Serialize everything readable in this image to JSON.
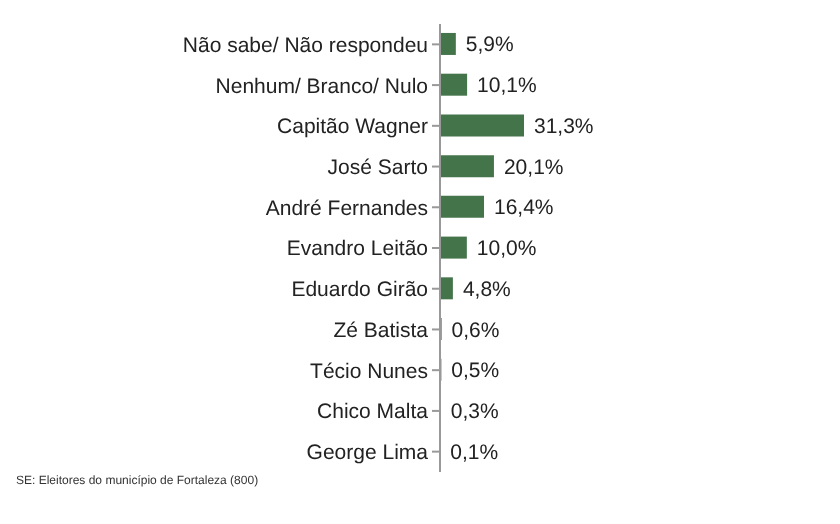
{
  "chart_data": {
    "type": "bar",
    "orientation": "horizontal",
    "categories": [
      "Não sabe/ Não respondeu",
      "Nenhum/ Branco/ Nulo",
      "Capitão Wagner",
      "José Sarto",
      "André Fernandes",
      "Evandro Leitão",
      "Eduardo Girão",
      "Zé Batista",
      "Técio Nunes",
      "Chico Malta",
      "George Lima"
    ],
    "values": [
      5.9,
      10.1,
      31.3,
      20.1,
      16.4,
      10.0,
      4.8,
      0.6,
      0.5,
      0.3,
      0.1
    ],
    "value_labels": [
      "5,9%",
      "10,1%",
      "31,3%",
      "20,1%",
      "16,4%",
      "10,0%",
      "4,8%",
      "0,6%",
      "0,5%",
      "0,3%",
      "0,1%"
    ],
    "color": "#44744a",
    "annotations": [
      "SE: Eleitores do município de Fortaleza (800)"
    ]
  }
}
